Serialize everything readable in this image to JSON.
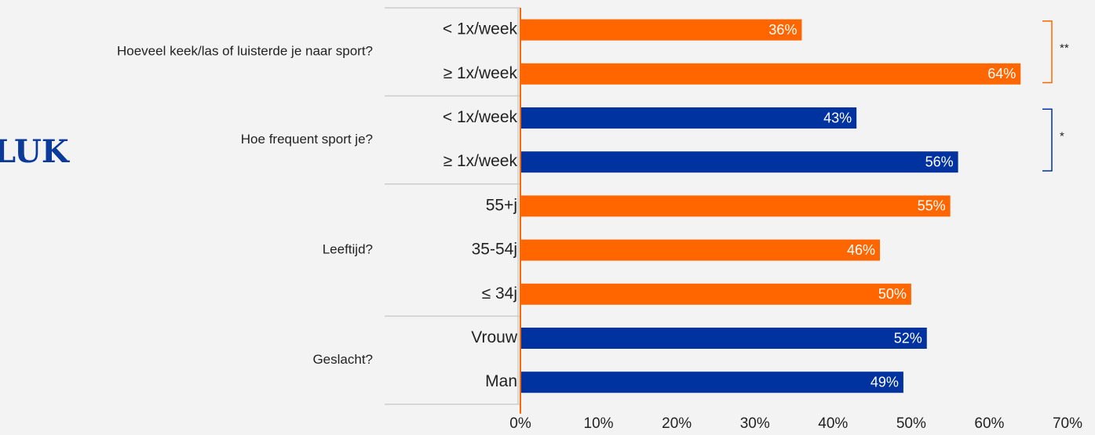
{
  "logo": "LUK",
  "chart_data": {
    "type": "bar",
    "orientation": "horizontal",
    "xlim": [
      0,
      70
    ],
    "xticks": [
      {
        "value": 0,
        "label": "0%"
      },
      {
        "value": 10,
        "label": "10%"
      },
      {
        "value": 20,
        "label": "20%"
      },
      {
        "value": 30,
        "label": "30%"
      },
      {
        "value": 40,
        "label": "40%"
      },
      {
        "value": 50,
        "label": "50%"
      },
      {
        "value": 60,
        "label": "60%"
      },
      {
        "value": 70,
        "label": "70%"
      }
    ],
    "groups": [
      {
        "name": "Hoeveel keek/las of luisterde je naar sport?",
        "color": "#ff6600",
        "significance": "**",
        "categories": [
          "< 1x/week",
          "≥ 1x/week"
        ],
        "values": [
          36,
          64
        ],
        "value_labels": [
          "36%",
          "64%"
        ]
      },
      {
        "name": "Hoe frequent sport je?",
        "color": "#0033a0",
        "significance": "*",
        "categories": [
          "< 1x/week",
          "≥ 1x/week"
        ],
        "values": [
          43,
          56
        ],
        "value_labels": [
          "43%",
          "56%"
        ]
      },
      {
        "name": "Leeftijd?",
        "color": "#ff6600",
        "categories": [
          "55+j",
          "35-54j",
          "≤ 34j"
        ],
        "values": [
          55,
          46,
          50
        ],
        "value_labels": [
          "55%",
          "46%",
          "50%"
        ]
      },
      {
        "name": "Geslacht?",
        "color": "#0033a0",
        "categories": [
          "Vrouw",
          "Man"
        ],
        "values": [
          52,
          49
        ],
        "value_labels": [
          "52%",
          "49%"
        ]
      }
    ]
  }
}
